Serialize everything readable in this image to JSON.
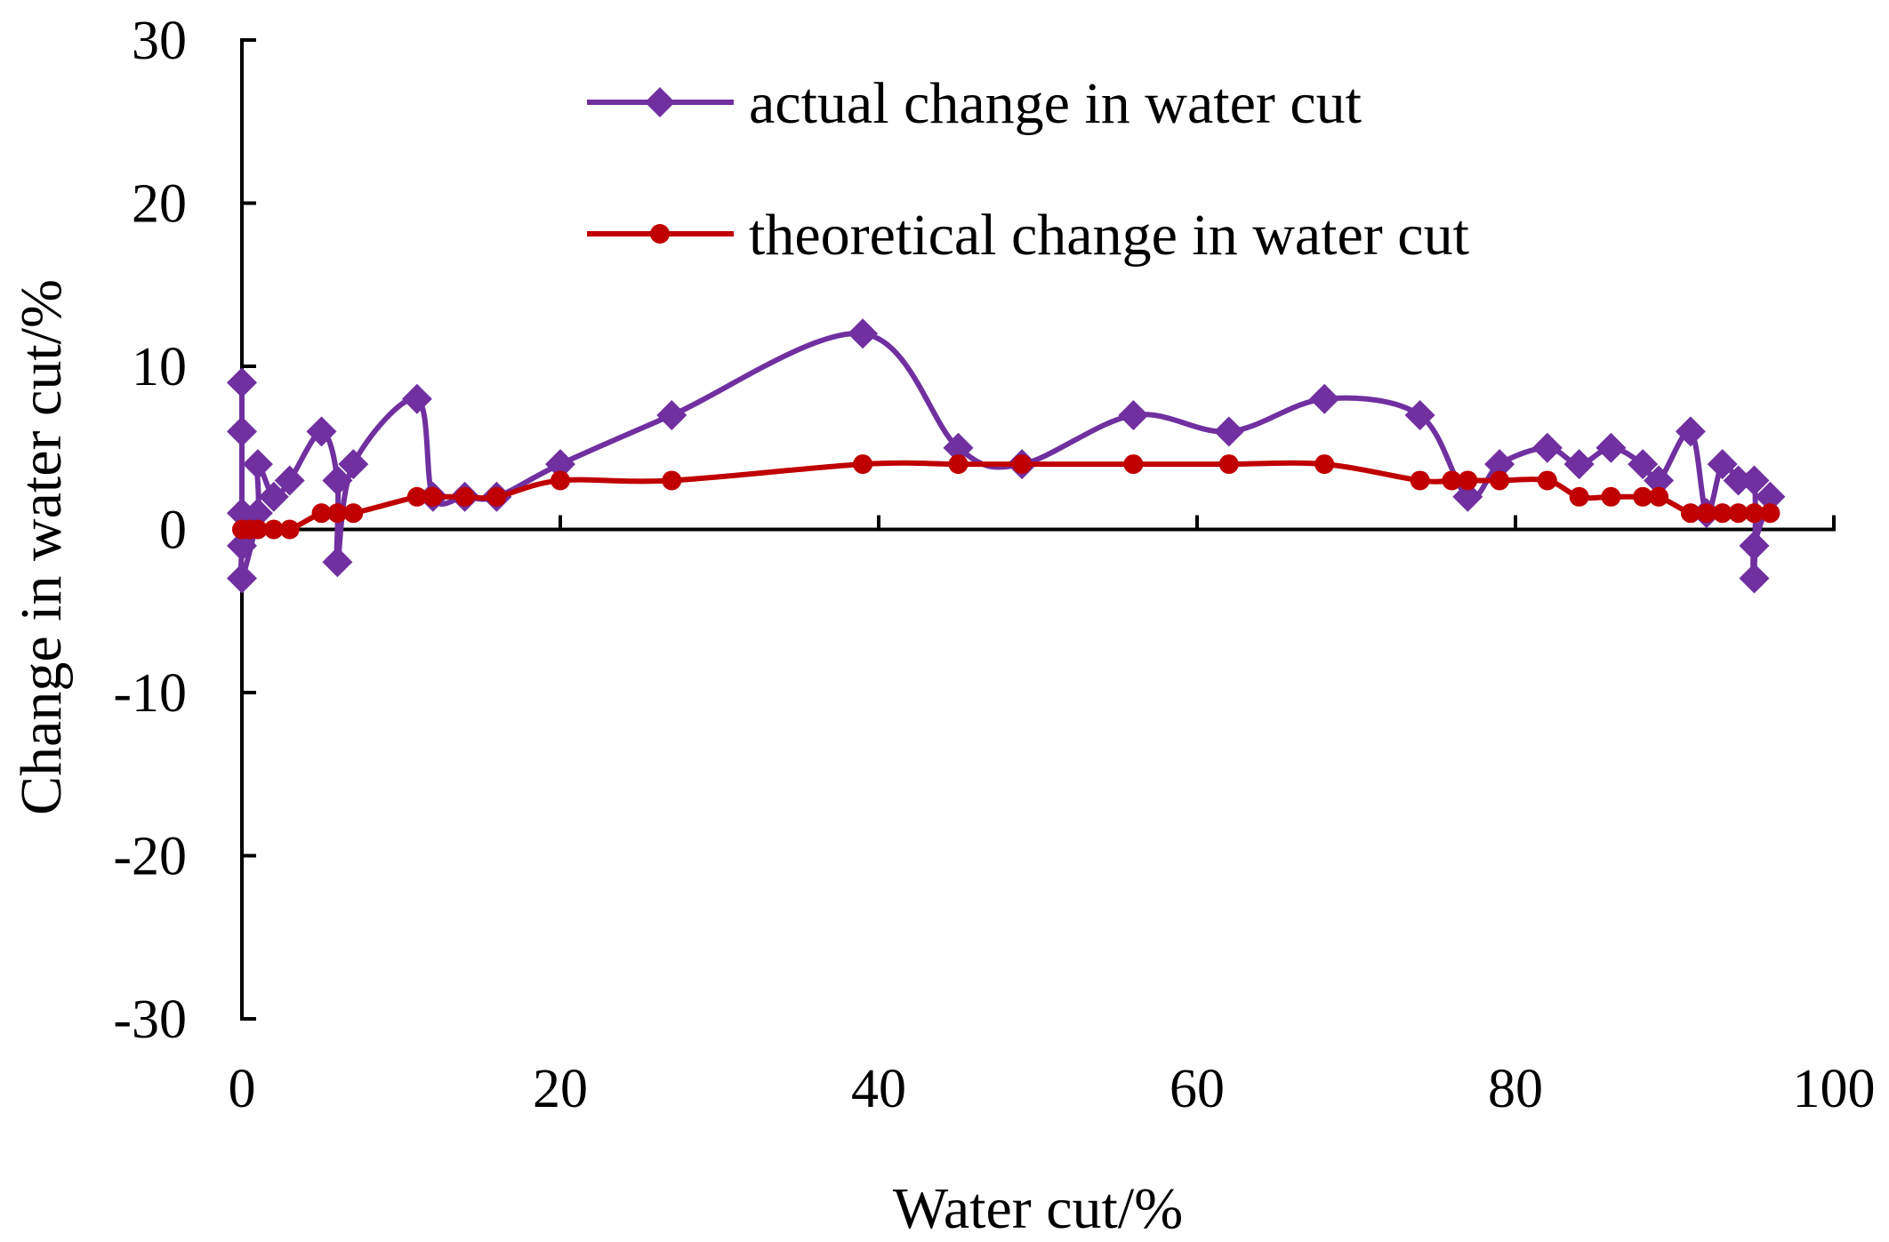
{
  "chart_data": {
    "type": "line",
    "title": "",
    "xlabel": "Water cut/%",
    "ylabel": "Change in water cut/%",
    "xlim": [
      0,
      100
    ],
    "ylim": [
      -30,
      30
    ],
    "xticks": [
      0,
      20,
      40,
      60,
      80,
      100
    ],
    "yticks": [
      -30,
      -20,
      -10,
      0,
      10,
      20,
      30
    ],
    "grid": false,
    "legend_position": "top-center",
    "series": [
      {
        "name": "actual change in water cut",
        "color": "#7030A0",
        "marker": "diamond",
        "x": [
          0,
          0,
          0,
          0,
          0,
          1,
          1,
          2,
          3,
          5,
          6,
          6,
          7,
          11,
          12,
          14,
          16,
          20,
          27,
          39,
          45,
          49,
          56,
          62,
          68,
          74,
          77,
          79,
          82,
          84,
          86,
          88,
          89,
          91,
          92,
          93,
          94,
          95,
          95,
          95,
          96
        ],
        "y": [
          9,
          6,
          1,
          -1,
          -3,
          1,
          4,
          2,
          3,
          6,
          3,
          -2,
          4,
          8,
          2,
          2,
          2,
          4,
          7,
          12,
          5,
          4,
          7,
          6,
          8,
          7,
          2,
          4,
          5,
          4,
          5,
          4,
          3,
          6,
          1,
          4,
          3,
          3,
          -3,
          -1,
          2
        ]
      },
      {
        "name": "theoretical change in water cut",
        "color": "#C00000",
        "marker": "circle",
        "x": [
          0,
          0.5,
          1,
          2,
          3,
          5,
          6,
          7,
          11,
          12,
          14,
          16,
          20,
          27,
          39,
          45,
          49,
          56,
          62,
          68,
          74,
          76,
          77,
          79,
          82,
          84,
          86,
          88,
          89,
          91,
          92,
          93,
          94,
          95,
          96
        ],
        "y": [
          0,
          0,
          0,
          0,
          0,
          1,
          1,
          1,
          2,
          2,
          2,
          2,
          3,
          3,
          4,
          4,
          4,
          4,
          4,
          4,
          3,
          3,
          3,
          3,
          3,
          2,
          2,
          2,
          2,
          1,
          1,
          1,
          1,
          1,
          1
        ]
      }
    ]
  }
}
